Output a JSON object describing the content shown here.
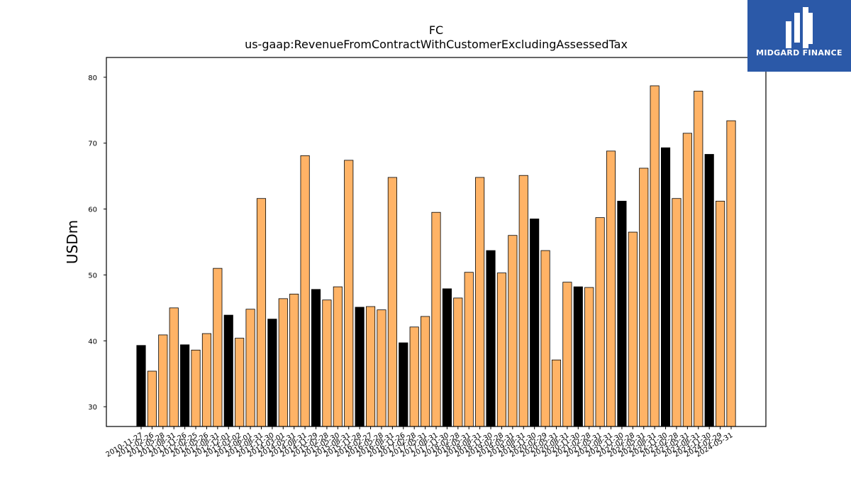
{
  "chart_data": {
    "type": "bar",
    "title_line1": "FC",
    "title_line2": "us-gaap:RevenueFromContractWithCustomerExcludingAssessedTax",
    "ylabel": "USDm",
    "ylim": [
      27,
      83
    ],
    "yticks": [
      30,
      40,
      50,
      60,
      70,
      80
    ],
    "grid": false,
    "categories": [
      "2010-11-27",
      "2011-02-26",
      "2011-05-28",
      "2011-08-31",
      "2011-11-26",
      "2012-02-25",
      "2012-05-26",
      "2012-08-31",
      "2012-12-01",
      "2013-03-02",
      "2013-06-01",
      "2013-08-31",
      "2013-11-30",
      "2014-03-01",
      "2014-05-31",
      "2014-08-31",
      "2014-11-29",
      "2015-02-28",
      "2015-05-30",
      "2015-08-31",
      "2015-11-28",
      "2016-02-27",
      "2016-05-28",
      "2016-08-31",
      "2016-11-26",
      "2017-02-28",
      "2017-05-31",
      "2017-08-31",
      "2017-11-30",
      "2018-02-28",
      "2018-05-31",
      "2018-08-31",
      "2018-11-30",
      "2019-02-28",
      "2019-05-31",
      "2019-08-31",
      "2019-11-30",
      "2020-02-29",
      "2020-05-31",
      "2020-08-31",
      "2020-11-30",
      "2021-02-28",
      "2021-05-31",
      "2021-08-31",
      "2021-11-30",
      "2022-02-28",
      "2022-05-31",
      "2022-08-31",
      "2022-11-30",
      "2023-02-28",
      "2023-05-31",
      "2023-08-31",
      "2023-11-30",
      "2024-02-29",
      "2024-05-31"
    ],
    "values": [
      39.3,
      35.4,
      40.9,
      45.0,
      39.4,
      38.6,
      41.1,
      51.0,
      43.9,
      40.4,
      44.8,
      61.6,
      43.3,
      46.4,
      47.1,
      68.1,
      47.8,
      46.2,
      48.2,
      67.4,
      45.1,
      45.2,
      44.7,
      64.8,
      39.7,
      42.1,
      43.7,
      59.5,
      47.9,
      46.5,
      50.4,
      64.8,
      53.7,
      50.3,
      56.0,
      65.1,
      58.5,
      53.7,
      37.1,
      48.9,
      48.2,
      48.1,
      58.7,
      68.8,
      61.2,
      56.5,
      66.2,
      78.7,
      69.3,
      61.6,
      71.5,
      77.9,
      68.3,
      61.2,
      73.4
    ],
    "bar_colors": {
      "annual": "#000000",
      "quarterly": "#ffb366"
    },
    "annual_indices": [
      0,
      4,
      8,
      12,
      16,
      20,
      24,
      28,
      32,
      36,
      40,
      44,
      48,
      52
    ]
  },
  "logo": {
    "text": "MIDGARD FINANCE"
  }
}
